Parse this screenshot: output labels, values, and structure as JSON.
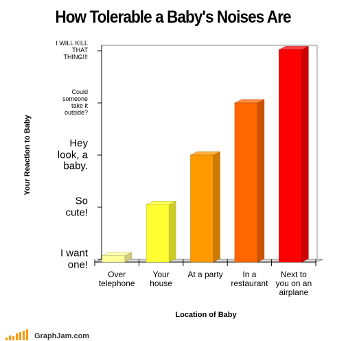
{
  "chart_data": {
    "type": "bar",
    "title": "How Tolerable a Baby's Noises Are",
    "x_label": "Location of Baby",
    "y_label": "Your Reaction to Baby",
    "categories": [
      "Over\ntelephone",
      "Your\nhouse",
      "At a party",
      "In a\nrestaurant",
      "Next to\nyou on an\nairplane"
    ],
    "values": [
      0.07,
      1.05,
      2,
      3,
      4.02
    ],
    "colors": [
      "#ffff99",
      "#ffff33",
      "#ff9900",
      "#ff6600",
      "#ff0000"
    ],
    "ylim": [
      0,
      4
    ],
    "yticks": [
      {
        "value": 0,
        "label": "I want\none!"
      },
      {
        "value": 1,
        "label": "So\ncute!"
      },
      {
        "value": 2,
        "label": "Hey\nlook, a\nbaby."
      },
      {
        "value": 3,
        "label": "Could\nsomeone\ntake it\noutside?"
      },
      {
        "value": 4,
        "label": "I WILL KILL\nTHAT\nTHING!!!"
      }
    ],
    "footer": "GraphJam.com"
  }
}
